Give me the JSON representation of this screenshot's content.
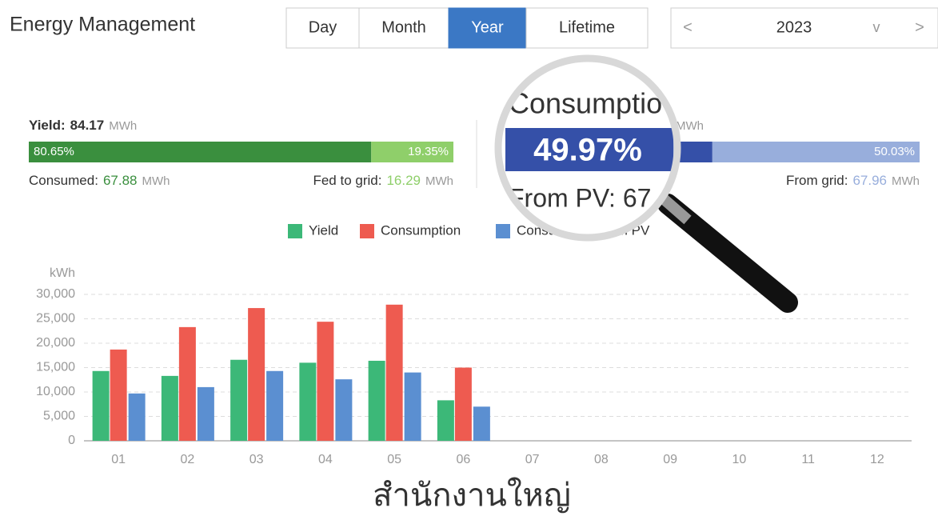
{
  "header": {
    "title": "Energy Management",
    "tabs": [
      "Day",
      "Month",
      "Year",
      "Lifetime"
    ],
    "active_tab": 2,
    "period": {
      "prev": "<",
      "value": "2023",
      "dropdown": "v",
      "next": ">"
    }
  },
  "yield": {
    "label": "Yield:",
    "value": "84.17",
    "unit": "MWh",
    "split": {
      "values": [
        80.65,
        19.35
      ],
      "value_labels": [
        "80.65%",
        "19.35%"
      ],
      "colors": [
        "#3a8f3e",
        "#8fcf6a"
      ]
    },
    "consumed": {
      "label": "Consumed:",
      "value": "67.88",
      "unit": "MWh"
    },
    "fed_to_grid": {
      "label": "Fed to grid:",
      "value": "16.29",
      "unit": "MWh"
    }
  },
  "consumption": {
    "label": "Consumptio",
    "unit": "MWh",
    "split": {
      "values": [
        49.97,
        50.03
      ],
      "value_labels": [
        "49.97%",
        "50.03%"
      ],
      "colors": [
        "#3550a8",
        "#98aedc"
      ]
    },
    "from_pv": {
      "label": "From PV: 67"
    },
    "from_grid": {
      "label": "From grid:",
      "value": "67.96",
      "unit": "MWh"
    }
  },
  "chart_data": {
    "type": "bar",
    "y_label": "kWh",
    "categories": [
      "01",
      "02",
      "03",
      "04",
      "05",
      "06",
      "07",
      "08",
      "09",
      "10",
      "11",
      "12"
    ],
    "series": [
      {
        "name": "Yield",
        "color": "#3cb878",
        "values": [
          14300,
          13300,
          16600,
          16000,
          16400,
          8300,
          null,
          null,
          null,
          null,
          null,
          null
        ]
      },
      {
        "name": "Consumption",
        "color": "#ee5b50",
        "values": [
          18700,
          23300,
          27200,
          24400,
          27900,
          15000,
          null,
          null,
          null,
          null,
          null,
          null
        ]
      },
      {
        "name": "Consumption from PV",
        "color": "#5b8fd1",
        "values": [
          9700,
          11000,
          14300,
          12600,
          14000,
          7000,
          null,
          null,
          null,
          null,
          null,
          null
        ]
      }
    ],
    "ylim": [
      0,
      30000
    ],
    "yticks": [
      0,
      {
        "value": 5000,
        "label": "5,000"
      },
      {
        "value": 10000,
        "label": "10,000"
      },
      {
        "value": 15000,
        "label": "15,000"
      },
      {
        "value": 20000,
        "label": "20,000"
      },
      {
        "value": 25000,
        "label": "25,000"
      },
      {
        "value": 30000,
        "label": "30,000"
      }
    ],
    "grid": true
  },
  "footer": {
    "text": "สำนักงานใหญ่"
  }
}
